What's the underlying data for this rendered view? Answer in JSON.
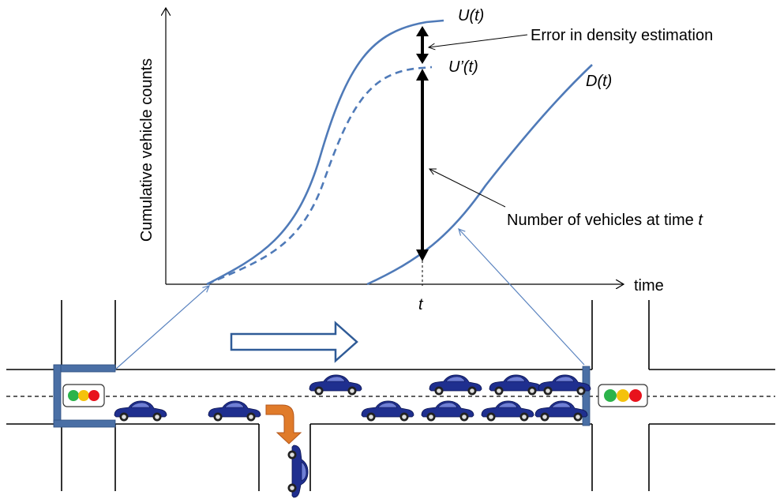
{
  "axes": {
    "ylabel": "Cumulative vehicle counts",
    "xlabel": "time",
    "t_tick": "t"
  },
  "curves": {
    "upstream": "U(t)",
    "upstream_est": "U’(t)",
    "downstream": "D(t)"
  },
  "annotations": {
    "error_label": "Error in density estimation",
    "count_label_prefix": "Number of vehicles at time ",
    "count_label_var": "t"
  },
  "colors": {
    "curve": "#4f7ab8",
    "detector": "#4a6fa5",
    "flow_arrow": "#2f5b97",
    "turn_arrow": "#e07b2a",
    "car": "#1f2f8f",
    "light_green": "#2bb34a",
    "light_yellow": "#f4c20d",
    "light_red": "#e8121c"
  },
  "icons": {
    "traffic_light": "traffic-light-icon",
    "car": "car-icon",
    "flow_direction": "right-arrow-icon",
    "turn": "turn-down-arrow-icon"
  },
  "scene": {
    "cars_main_lane_count": 11,
    "cars_turning_count": 1
  }
}
